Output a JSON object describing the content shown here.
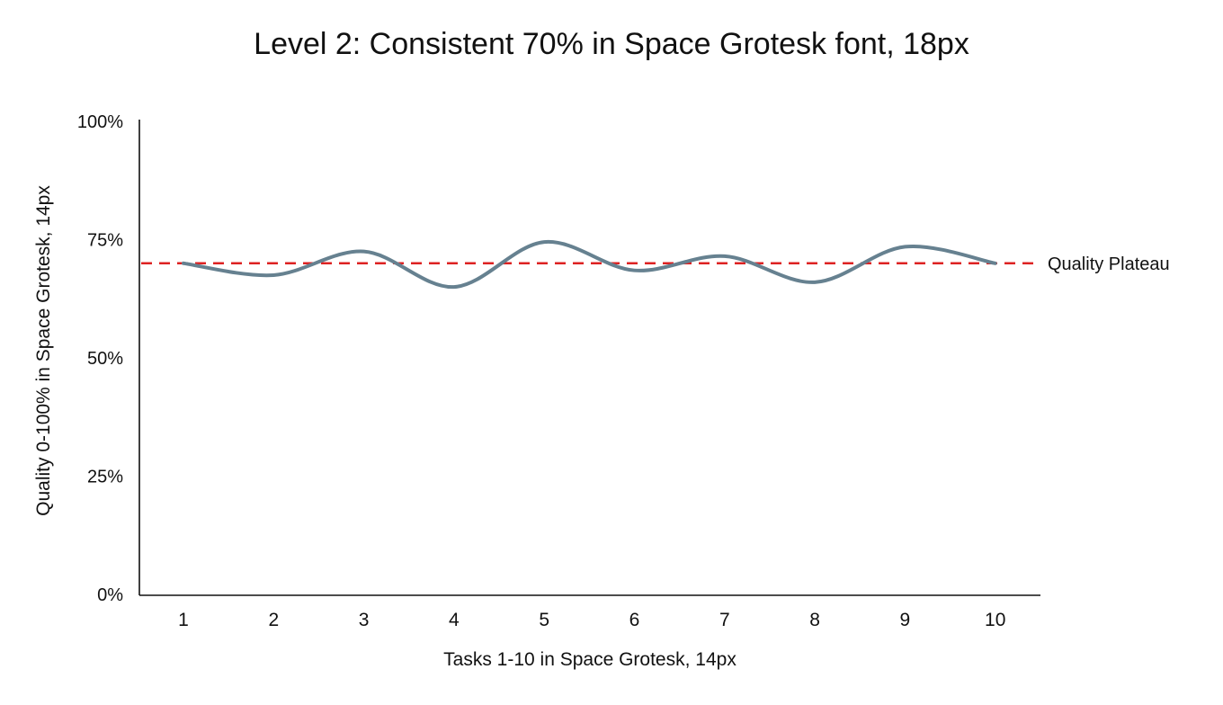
{
  "title": "Level 2: Consistent 70% in Space Grotesk font, 18px",
  "colors": {
    "series": "#668190",
    "reference_line": "#dd2222",
    "axis": "#111111",
    "background": "#ffffff"
  },
  "chart_data": {
    "type": "line",
    "title": "Level 2: Consistent 70% in Space Grotesk font, 18px",
    "xlabel": "Tasks 1-10 in Space Grotesk, 14px",
    "ylabel": "Quality 0-100% in Space Grotesk, 14px",
    "categories": [
      "1",
      "2",
      "3",
      "4",
      "5",
      "6",
      "7",
      "8",
      "9",
      "10"
    ],
    "x": [
      1,
      2,
      3,
      4,
      5,
      6,
      7,
      8,
      9,
      10
    ],
    "series": [
      {
        "name": "Quality",
        "values": [
          70,
          67.5,
          72.5,
          65,
          74.5,
          68.5,
          71.5,
          66,
          73.5,
          70
        ],
        "smooth": true
      }
    ],
    "reference_lines": [
      {
        "label": "Quality Plateau",
        "y": 70,
        "style": "dashed"
      }
    ],
    "yticks": [
      "0%",
      "25%",
      "50%",
      "75%",
      "100%"
    ],
    "ytick_values": [
      0,
      25,
      50,
      75,
      100
    ],
    "ylim": [
      0,
      100
    ],
    "grid": false,
    "legend": "none"
  }
}
